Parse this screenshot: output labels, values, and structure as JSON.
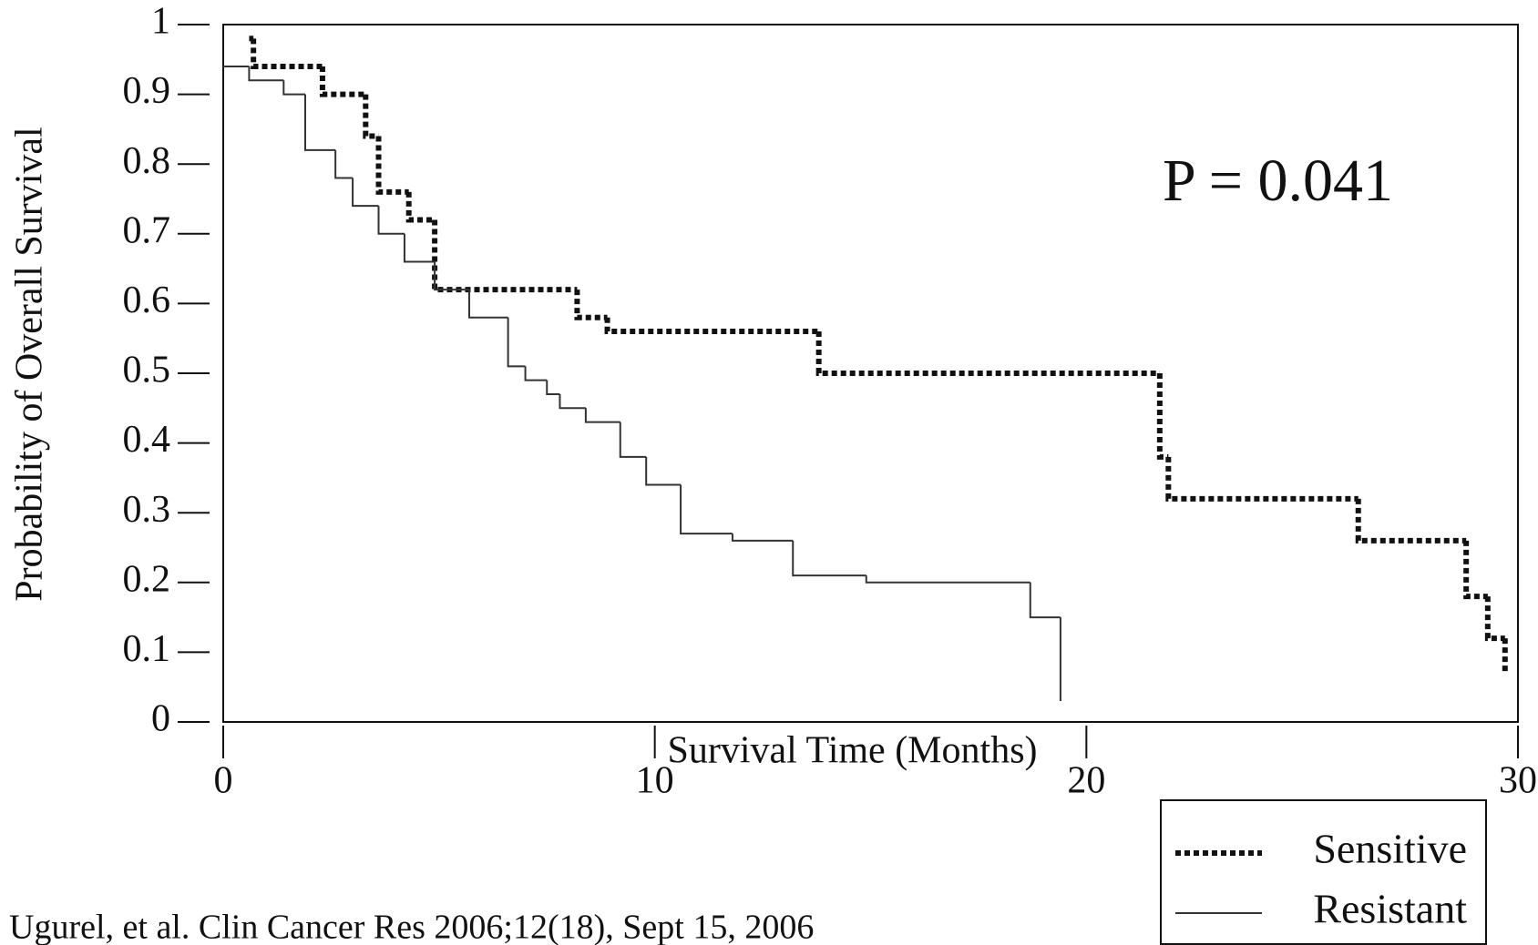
{
  "chart_data": {
    "type": "step",
    "x_label": "Survival Time (Months)",
    "y_label": "Probability of Overall Survival",
    "annotation": "P = 0.041",
    "source": "Ugurel, et al. Clin Cancer Res 2006;12(18), Sept 15, 2006",
    "xlim": [
      0,
      30
    ],
    "xticks": [
      0,
      10,
      20,
      30
    ],
    "ylim": [
      0,
      1
    ],
    "yticks": [
      0,
      0.1,
      0.2,
      0.3,
      0.4,
      0.5,
      0.6,
      0.7,
      0.8,
      0.9,
      1
    ],
    "legend": "bottom-right",
    "series": [
      {
        "name": "Sensitive",
        "color": "#111111",
        "style": "dotted",
        "x": [
          0.6,
          0.7,
          2.3,
          3.3,
          3.6,
          4.3,
          4.9,
          8.2,
          8.9,
          13.8,
          21.7,
          21.9,
          26.3,
          28.8,
          29.3,
          29.7
        ],
        "values": [
          0.98,
          0.94,
          0.9,
          0.84,
          0.76,
          0.72,
          0.62,
          0.58,
          0.56,
          0.5,
          0.38,
          0.32,
          0.26,
          0.18,
          0.12,
          0.07
        ]
      },
      {
        "name": "Resistant",
        "color": "#333333",
        "style": "solid",
        "x": [
          0,
          0.6,
          1.4,
          1.9,
          2.6,
          3.0,
          3.6,
          4.2,
          4.9,
          5.7,
          6.6,
          7.0,
          7.5,
          7.8,
          8.4,
          9.2,
          9.8,
          10.6,
          11.8,
          13.2,
          14.9,
          18.7,
          19.4
        ],
        "values": [
          0.94,
          0.92,
          0.9,
          0.82,
          0.78,
          0.74,
          0.7,
          0.66,
          0.62,
          0.58,
          0.51,
          0.49,
          0.47,
          0.45,
          0.43,
          0.38,
          0.34,
          0.27,
          0.26,
          0.21,
          0.2,
          0.15,
          0.03
        ]
      }
    ]
  }
}
